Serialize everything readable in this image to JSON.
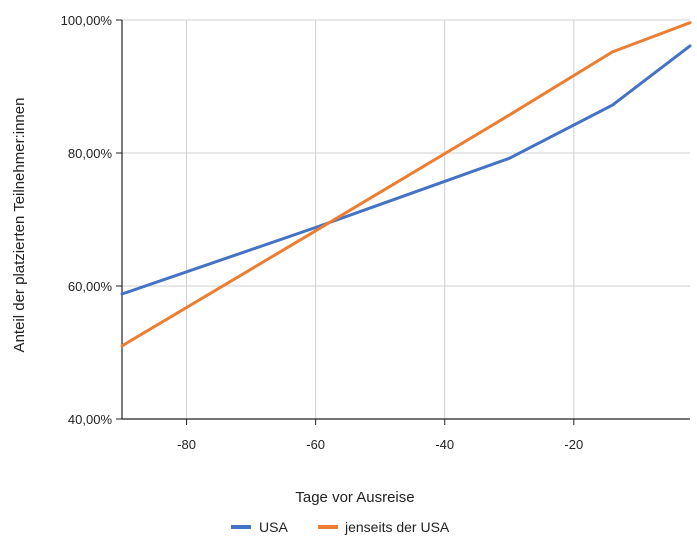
{
  "chart_data": {
    "type": "line",
    "title": "",
    "xlabel": "Tage vor Ausreise",
    "ylabel": "Anteil der platzierten Teilnehmer:innen",
    "xlim": [
      -90,
      -2
    ],
    "ylim": [
      40,
      100
    ],
    "x_ticks": [
      -80,
      -60,
      -40,
      -20
    ],
    "x_tick_labels": [
      "-80",
      "-60",
      "-40",
      "-20"
    ],
    "y_ticks": [
      40,
      60,
      80,
      100
    ],
    "y_tick_labels": [
      "40,00%",
      "60,00%",
      "80,00%",
      "100,00%"
    ],
    "grid": true,
    "legend_position": "bottom",
    "series": [
      {
        "name": "USA",
        "color": "#4472C4",
        "x": [
          -90,
          -60,
          -30,
          -14,
          -2
        ],
        "y": [
          58.8,
          68.8,
          79.2,
          87.2,
          96.1
        ]
      },
      {
        "name": "jenseits der USA",
        "color": "#ED7D31",
        "x": [
          -90,
          -60,
          -30,
          -14,
          -2
        ],
        "y": [
          51.0,
          68.3,
          85.7,
          95.2,
          99.6
        ]
      }
    ]
  }
}
